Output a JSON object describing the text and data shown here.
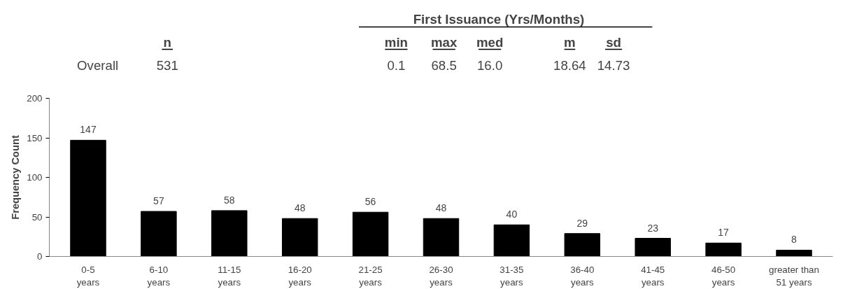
{
  "chart_data": {
    "type": "bar",
    "title": "First Issuance (Yrs/Months)",
    "annotations": [
      "n",
      "min",
      "max",
      "med",
      "m",
      "sd",
      "Overall",
      "531",
      "0.1",
      "68.5",
      "16.0",
      "18.64",
      "14.73"
    ],
    "ylabel": "Frequency Count",
    "categories": [
      "0-5\nyears",
      "6-10\nyears",
      "11-15\nyears",
      "16-20\nyears",
      "21-25\nyears",
      "26-30\nyears",
      "31-35\nyears",
      "36-40\nyears",
      "41-45\nyears",
      "46-50\nyears",
      "greater than\n51 years"
    ],
    "values": [
      147,
      57,
      58,
      48,
      56,
      48,
      40,
      29,
      23,
      17,
      8
    ],
    "color": "#000000",
    "ylim": [
      0,
      200
    ],
    "yticks": [
      0,
      50,
      100,
      150,
      200
    ],
    "data_labels": true,
    "grid": false
  }
}
